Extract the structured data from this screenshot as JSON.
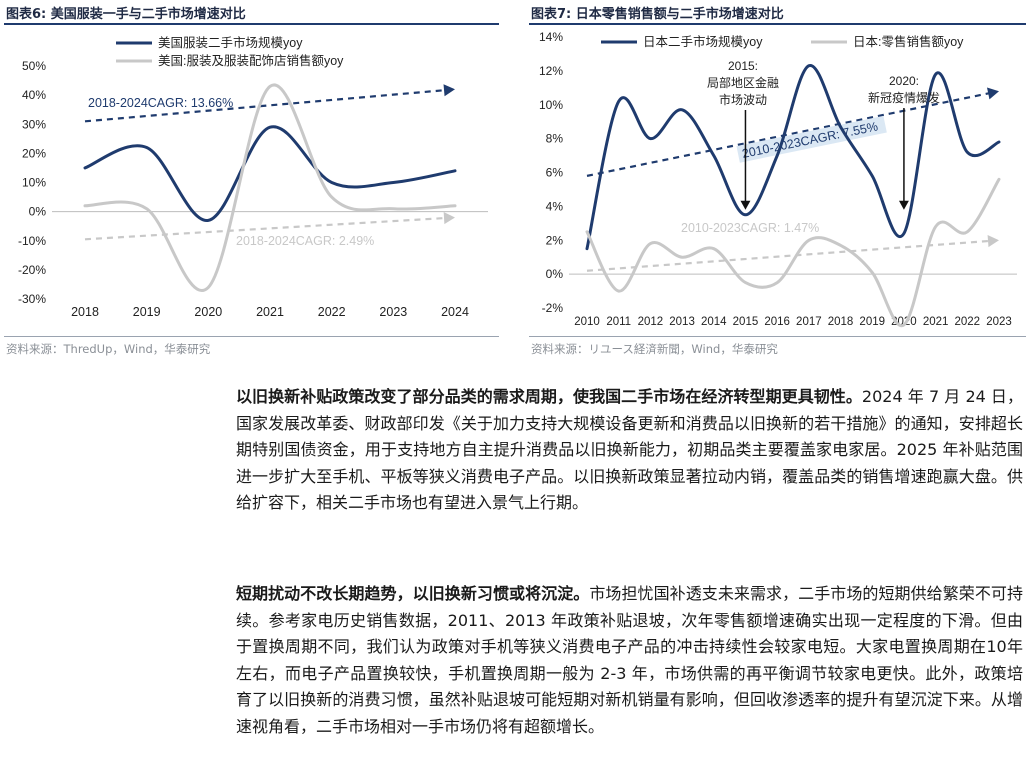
{
  "figures": [
    {
      "title": "图表6:  美国服装一手与二手市场增速对比",
      "source": "资料来源：ThredUp，Wind，华泰研究",
      "chart_data": {
        "type": "line",
        "x": [
          "2018",
          "2019",
          "2020",
          "2021",
          "2022",
          "2023",
          "2024"
        ],
        "ylim": [
          -30,
          50
        ],
        "yticks": [
          -30,
          -20,
          -10,
          0,
          10,
          20,
          30,
          40,
          50
        ],
        "ytick_format": "percent",
        "legend_position": "top-left",
        "series": [
          {
            "name": "美国服装二手市场规模yoy",
            "color": "#1f3b6e",
            "values": [
              15,
              22,
              -3,
              29,
              10,
              10,
              14
            ]
          },
          {
            "name": "美国:服装及服装配饰店销售额yoy",
            "color": "#c8c8c8",
            "values": [
              2,
              1,
              -26,
              43,
              5,
              1,
              2
            ]
          }
        ],
        "trend_annotations": [
          {
            "label": "2018-2024CAGR: 13.66%",
            "color": "#1f3b6e",
            "from": [
              2018,
              31
            ],
            "to": [
              2024,
              42
            ]
          },
          {
            "label": "2018-2024CAGR: 2.49%",
            "color": "#c8c8c8",
            "from": [
              2018,
              -9.5
            ],
            "to": [
              2024,
              -2
            ]
          }
        ]
      }
    },
    {
      "title": "图表7:  日本零售销售额与二手市场增速对比",
      "source": "资料来源：リユース経済新聞，Wind，华泰研究",
      "chart_data": {
        "type": "line",
        "x": [
          "2010",
          "2011",
          "2012",
          "2013",
          "2014",
          "2015",
          "2016",
          "2017",
          "2018",
          "2019",
          "2020",
          "2021",
          "2022",
          "2023"
        ],
        "ylim": [
          -2,
          14
        ],
        "yticks": [
          -2,
          0,
          2,
          4,
          6,
          8,
          10,
          12,
          14
        ],
        "ytick_format": "percent",
        "legend_position": "top",
        "series": [
          {
            "name": "日本二手市场规模yoy",
            "color": "#1f3b6e",
            "values": [
              1.5,
              10.2,
              8.0,
              9.7,
              7.0,
              3.5,
              7.0,
              12.3,
              8.7,
              5.8,
              2.4,
              11.8,
              7.2,
              7.8
            ]
          },
          {
            "name": "日本:零售销售额yoy",
            "color": "#c8c8c8",
            "values": [
              2.5,
              -1.0,
              1.8,
              1.0,
              1.5,
              -0.5,
              -0.5,
              2.0,
              1.7,
              0.1,
              -3.0,
              2.8,
              2.5,
              5.6
            ]
          }
        ],
        "trend_annotations": [
          {
            "label": "2010-2023CAGR: 7.55%",
            "color": "#1f3b6e",
            "from": [
              2010,
              5.8
            ],
            "to": [
              2023,
              10.8
            ]
          },
          {
            "label": "2010-2023CAGR: 1.47%",
            "color": "#c8c8c8",
            "from": [
              2010,
              0.2
            ],
            "to": [
              2023,
              2.0
            ]
          }
        ],
        "event_annotations": [
          {
            "label": [
              "2015:",
              "局部地区金融",
              "市场波动"
            ],
            "x": 2015,
            "y": 3.8
          },
          {
            "label": [
              "2020:",
              "新冠疫情爆发"
            ],
            "x": 2020,
            "y": 3.8
          }
        ]
      }
    }
  ],
  "paragraphs": [
    {
      "bold": "以旧换新补贴政策改变了部分品类的需求周期，使我国二手市场在经济转型期更具韧性。",
      "text": "2024 年 7 月 24 日，国家发展改革委、财政部印发《关于加力支持大规模设备更新和消费品以旧换新的若干措施》的通知，安排超长期特别国债资金，用于支持地方自主提升消费品以旧换新能力，初期品类主要覆盖家电家居。2025 年补贴范围进一步扩大至手机、平板等狭义消费电子产品。以旧换新政策显著拉动内销，覆盖品类的销售增速跑赢大盘。供给扩容下，相关二手市场也有望进入景气上行期。"
    },
    {
      "bold": "短期扰动不改长期趋势，以旧换新习惯或将沉淀。",
      "text": "市场担忧国补透支未来需求，二手市场的短期供给繁荣不可持续。参考家电历史销售数据，2011、2013 年政策补贴退坡，次年零售额增速确实出现一定程度的下滑。但由于置换周期不同，我们认为政策对手机等狭义消费电子产品的冲击持续性会较家电短。大家电置换周期在10年左右，而电子产品置换较快，手机置换周期一般为 2-3 年，市场供需的再平衡调节较家电更快。此外，政策培育了以旧换新的消费习惯，虽然补贴退坡可能短期对新机销量有影响，但回收渗透率的提升有望沉淀下来。从增速视角看，二手市场相对一手市场仍将有超额增长。"
    }
  ]
}
